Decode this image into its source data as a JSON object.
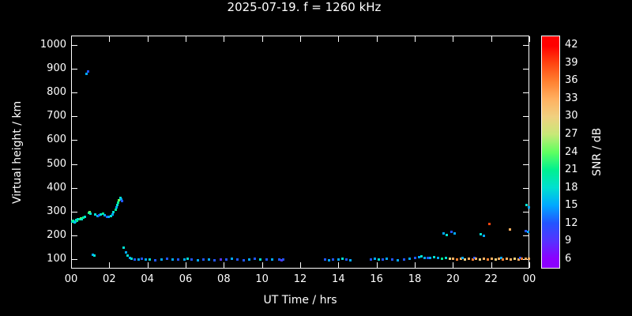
{
  "title": "2025-07-19. f = 1260 kHz",
  "axes": {
    "y_label": "Virtual height / km",
    "x_label": "UT Time / hrs",
    "colorbar_label": "SNR / dB"
  },
  "chart_data": {
    "type": "scatter",
    "title": "2025-07-19. f = 1260 kHz",
    "xlabel": "UT Time / hrs",
    "ylabel": "Virtual height / km",
    "background": "#000000",
    "text_color": "#ffffff",
    "x_range": [
      0,
      24
    ],
    "y_axis": {
      "tick_min": 100,
      "tick_max": 1000,
      "plot_min": 60,
      "plot_max": 1040
    },
    "x_ticks": [
      {
        "v": 0,
        "label": "00"
      },
      {
        "v": 2,
        "label": "02"
      },
      {
        "v": 4,
        "label": "04"
      },
      {
        "v": 6,
        "label": "06"
      },
      {
        "v": 8,
        "label": "08"
      },
      {
        "v": 10,
        "label": "10"
      },
      {
        "v": 12,
        "label": "12"
      },
      {
        "v": 14,
        "label": "14"
      },
      {
        "v": 16,
        "label": "16"
      },
      {
        "v": 18,
        "label": "18"
      },
      {
        "v": 20,
        "label": "20"
      },
      {
        "v": 22,
        "label": "22"
      },
      {
        "v": 24,
        "label": "00"
      }
    ],
    "y_ticks": [
      100,
      200,
      300,
      400,
      500,
      600,
      700,
      800,
      900,
      1000
    ],
    "colorbar": {
      "label": "SNR / dB",
      "min": 6,
      "max": 42,
      "ticks": [
        42,
        39,
        36,
        33,
        30,
        27,
        24,
        21,
        18,
        15,
        12,
        9,
        6
      ]
    },
    "color_scale": [
      {
        "v": 6,
        "c": "#8b00ff"
      },
      {
        "v": 9,
        "c": "#5533ff"
      },
      {
        "v": 12,
        "c": "#2255ff"
      },
      {
        "v": 15,
        "c": "#00a8ff"
      },
      {
        "v": 18,
        "c": "#00e0d0"
      },
      {
        "v": 21,
        "c": "#00f090"
      },
      {
        "v": 24,
        "c": "#60ff60"
      },
      {
        "v": 27,
        "c": "#c8e878"
      },
      {
        "v": 30,
        "c": "#f0d080"
      },
      {
        "v": 33,
        "c": "#ffb060"
      },
      {
        "v": 36,
        "c": "#ff8030"
      },
      {
        "v": 39,
        "c": "#ff4510"
      },
      {
        "v": 42,
        "c": "#ff0000"
      }
    ],
    "points": [
      [
        0.05,
        258,
        18
      ],
      [
        0.1,
        262,
        21
      ],
      [
        0.15,
        255,
        18
      ],
      [
        0.2,
        260,
        15
      ],
      [
        0.25,
        265,
        18
      ],
      [
        0.3,
        262,
        21
      ],
      [
        0.35,
        268,
        18
      ],
      [
        0.45,
        270,
        21
      ],
      [
        0.5,
        272,
        24
      ],
      [
        0.55,
        268,
        18
      ],
      [
        0.6,
        275,
        21
      ],
      [
        0.7,
        280,
        18
      ],
      [
        0.8,
        880,
        15
      ],
      [
        0.85,
        890,
        12
      ],
      [
        0.9,
        295,
        21
      ],
      [
        0.95,
        300,
        24
      ],
      [
        1.0,
        292,
        18
      ],
      [
        1.1,
        120,
        15
      ],
      [
        1.2,
        117,
        18
      ],
      [
        1.25,
        288,
        18
      ],
      [
        1.35,
        282,
        15
      ],
      [
        1.45,
        285,
        12
      ],
      [
        1.55,
        288,
        18
      ],
      [
        1.65,
        292,
        21
      ],
      [
        1.75,
        285,
        15
      ],
      [
        1.85,
        280,
        12
      ],
      [
        1.95,
        278,
        15
      ],
      [
        2.05,
        282,
        18
      ],
      [
        2.15,
        290,
        15
      ],
      [
        2.2,
        300,
        18
      ],
      [
        2.3,
        310,
        21
      ],
      [
        2.35,
        318,
        15
      ],
      [
        2.4,
        330,
        18
      ],
      [
        2.45,
        340,
        21
      ],
      [
        2.5,
        350,
        24
      ],
      [
        2.55,
        358,
        18
      ],
      [
        2.6,
        352,
        15
      ],
      [
        2.65,
        345,
        12
      ],
      [
        2.75,
        150,
        18
      ],
      [
        2.85,
        130,
        15
      ],
      [
        2.95,
        115,
        18
      ],
      [
        3.05,
        105,
        15
      ],
      [
        3.15,
        102,
        18
      ],
      [
        3.3,
        100,
        12
      ],
      [
        3.5,
        100,
        15
      ],
      [
        3.7,
        102,
        12
      ],
      [
        3.9,
        100,
        15
      ],
      [
        4.1,
        100,
        18
      ],
      [
        4.4,
        98,
        12
      ],
      [
        4.7,
        100,
        15
      ],
      [
        5.0,
        102,
        12
      ],
      [
        5.3,
        100,
        15
      ],
      [
        5.6,
        100,
        12
      ],
      [
        5.9,
        100,
        15
      ],
      [
        6.1,
        102,
        18
      ],
      [
        6.3,
        100,
        12
      ],
      [
        6.6,
        98,
        15
      ],
      [
        6.9,
        100,
        12
      ],
      [
        7.2,
        100,
        15
      ],
      [
        7.5,
        98,
        12
      ],
      [
        7.8,
        100,
        9
      ],
      [
        8.1,
        100,
        12
      ],
      [
        8.4,
        102,
        15
      ],
      [
        8.7,
        100,
        12
      ],
      [
        9.0,
        98,
        12
      ],
      [
        9.3,
        100,
        15
      ],
      [
        9.6,
        102,
        12
      ],
      [
        9.9,
        100,
        18
      ],
      [
        10.2,
        100,
        12
      ],
      [
        10.5,
        100,
        15
      ],
      [
        10.9,
        100,
        12
      ],
      [
        11.0,
        96,
        9
      ],
      [
        11.1,
        100,
        12
      ],
      [
        13.3,
        100,
        12
      ],
      [
        13.5,
        98,
        15
      ],
      [
        13.7,
        100,
        12
      ],
      [
        14.0,
        100,
        15
      ],
      [
        14.2,
        102,
        18
      ],
      [
        14.4,
        100,
        12
      ],
      [
        14.6,
        98,
        15
      ],
      [
        15.7,
        100,
        12
      ],
      [
        15.9,
        102,
        15
      ],
      [
        16.1,
        100,
        18
      ],
      [
        16.3,
        100,
        12
      ],
      [
        16.5,
        102,
        15
      ],
      [
        16.8,
        100,
        12
      ],
      [
        17.1,
        98,
        15
      ],
      [
        17.4,
        100,
        12
      ],
      [
        17.7,
        102,
        15
      ],
      [
        18.0,
        105,
        12
      ],
      [
        18.2,
        110,
        15
      ],
      [
        18.35,
        112,
        18
      ],
      [
        18.5,
        108,
        15
      ],
      [
        18.65,
        105,
        12
      ],
      [
        18.8,
        108,
        15
      ],
      [
        19.0,
        110,
        18
      ],
      [
        19.2,
        106,
        15
      ],
      [
        19.4,
        104,
        21
      ],
      [
        19.6,
        108,
        18
      ],
      [
        19.5,
        210,
        15
      ],
      [
        19.65,
        202,
        18
      ],
      [
        19.9,
        215,
        12
      ],
      [
        20.05,
        208,
        15
      ],
      [
        21.45,
        205,
        18
      ],
      [
        21.6,
        200,
        15
      ],
      [
        21.9,
        248,
        39
      ],
      [
        22.95,
        225,
        33
      ],
      [
        23.8,
        220,
        12
      ],
      [
        23.9,
        215,
        15
      ],
      [
        23.85,
        330,
        18
      ],
      [
        23.95,
        320,
        15
      ],
      [
        19.8,
        104,
        30
      ],
      [
        20.0,
        102,
        33
      ],
      [
        20.2,
        100,
        36
      ],
      [
        20.4,
        102,
        33
      ],
      [
        20.5,
        108,
        15
      ],
      [
        20.6,
        100,
        30
      ],
      [
        20.8,
        103,
        33
      ],
      [
        21.0,
        100,
        36
      ],
      [
        21.1,
        108,
        12
      ],
      [
        21.2,
        102,
        33
      ],
      [
        21.4,
        100,
        30
      ],
      [
        21.6,
        103,
        33
      ],
      [
        21.8,
        100,
        36
      ],
      [
        22.0,
        102,
        33
      ],
      [
        22.2,
        100,
        30
      ],
      [
        22.4,
        102,
        33
      ],
      [
        22.5,
        108,
        15
      ],
      [
        22.6,
        100,
        36
      ],
      [
        22.8,
        103,
        33
      ],
      [
        23.0,
        100,
        33
      ],
      [
        23.2,
        102,
        30
      ],
      [
        23.4,
        100,
        33
      ],
      [
        23.5,
        108,
        12
      ],
      [
        23.6,
        102,
        36
      ],
      [
        23.8,
        104,
        33
      ],
      [
        23.95,
        102,
        33
      ]
    ]
  }
}
